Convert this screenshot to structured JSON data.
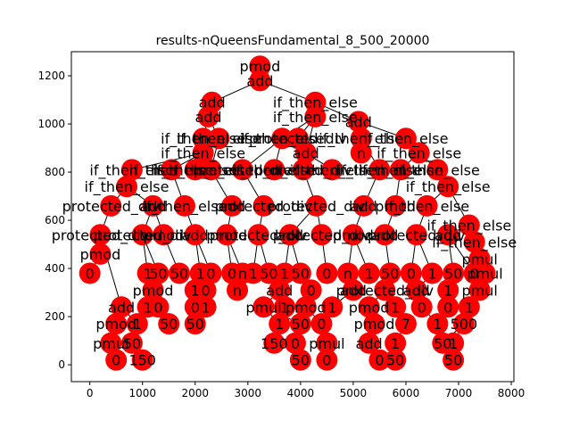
{
  "chart_data": {
    "type": "scatter",
    "subtype": "tree",
    "title": "results-nQueensFundamental_8_500_20000",
    "xlabel": "",
    "ylabel": "",
    "xlim": [
      -350,
      8050
    ],
    "ylim": [
      -70,
      1300
    ],
    "xticks": [
      0,
      1000,
      2000,
      3000,
      4000,
      5000,
      6000,
      7000,
      8000
    ],
    "yticks": [
      0,
      200,
      400,
      600,
      800,
      1000,
      1200
    ],
    "grid": false,
    "node_color": "#ff0000",
    "edge_color": "#000000",
    "nodes": [
      {
        "id": 0,
        "x": 3230,
        "y": 1240,
        "label": "pmod"
      },
      {
        "id": 1,
        "x": 3230,
        "y": 1180,
        "label": "add"
      },
      {
        "id": 2,
        "x": 2320,
        "y": 1090,
        "label": "add"
      },
      {
        "id": 3,
        "x": 2250,
        "y": 1030,
        "label": "add"
      },
      {
        "id": 4,
        "x": 4280,
        "y": 1090,
        "label": "if_then_else"
      },
      {
        "id": 5,
        "x": 4280,
        "y": 1030,
        "label": "if_then_else"
      },
      {
        "id": 6,
        "x": 5100,
        "y": 1010,
        "label": "add"
      },
      {
        "id": 7,
        "x": 2150,
        "y": 940,
        "label": "if_then_else"
      },
      {
        "id": 8,
        "x": 2150,
        "y": 880,
        "label": "if_then_else"
      },
      {
        "id": 9,
        "x": 2450,
        "y": 940,
        "label": "if_then_else"
      },
      {
        "id": 10,
        "x": 3650,
        "y": 940,
        "label": "if_then_else"
      },
      {
        "id": 11,
        "x": 3950,
        "y": 940,
        "label": "protected_div"
      },
      {
        "id": 12,
        "x": 4100,
        "y": 880,
        "label": "add"
      },
      {
        "id": 13,
        "x": 5150,
        "y": 940,
        "label": "if_then_else"
      },
      {
        "id": 14,
        "x": 6000,
        "y": 940,
        "label": "if_then_else"
      },
      {
        "id": 15,
        "x": 6250,
        "y": 880,
        "label": "if_then_else"
      },
      {
        "id": 16,
        "x": 5150,
        "y": 880,
        "label": "n"
      },
      {
        "id": 17,
        "x": 800,
        "y": 810,
        "label": "if_then_else"
      },
      {
        "id": 18,
        "x": 700,
        "y": 740,
        "label": "if_then_else"
      },
      {
        "id": 19,
        "x": 1550,
        "y": 810,
        "label": "if_then_else"
      },
      {
        "id": 20,
        "x": 2000,
        "y": 810,
        "label": "if_then_else"
      },
      {
        "id": 21,
        "x": 2300,
        "y": 810,
        "label": "if_then_else"
      },
      {
        "id": 22,
        "x": 2900,
        "y": 810,
        "label": "protected_div"
      },
      {
        "id": 23,
        "x": 3500,
        "y": 810,
        "label": "if_then_else"
      },
      {
        "id": 24,
        "x": 4050,
        "y": 810,
        "label": "protected_div"
      },
      {
        "id": 25,
        "x": 4600,
        "y": 810,
        "label": "if_then_else"
      },
      {
        "id": 26,
        "x": 5500,
        "y": 810,
        "label": "if_then_else"
      },
      {
        "id": 27,
        "x": 5900,
        "y": 810,
        "label": "if_then_else"
      },
      {
        "id": 28,
        "x": 6600,
        "y": 810,
        "label": "if_then_else"
      },
      {
        "id": 29,
        "x": 6800,
        "y": 740,
        "label": "if_then_else"
      },
      {
        "id": 30,
        "x": 400,
        "y": 660,
        "label": "protected_div"
      },
      {
        "id": 31,
        "x": 1200,
        "y": 660,
        "label": "add"
      },
      {
        "id": 32,
        "x": 1800,
        "y": 660,
        "label": "if_then_else"
      },
      {
        "id": 33,
        "x": 2700,
        "y": 660,
        "label": "add"
      },
      {
        "id": 34,
        "x": 3300,
        "y": 660,
        "label": "protected_div"
      },
      {
        "id": 35,
        "x": 4300,
        "y": 660,
        "label": "protected_div"
      },
      {
        "id": 36,
        "x": 5200,
        "y": 660,
        "label": "add"
      },
      {
        "id": 37,
        "x": 5800,
        "y": 660,
        "label": "pmod"
      },
      {
        "id": 38,
        "x": 6400,
        "y": 660,
        "label": "if_then_else"
      },
      {
        "id": 39,
        "x": 7200,
        "y": 580,
        "label": "if_then_else"
      },
      {
        "id": 40,
        "x": 7300,
        "y": 510,
        "label": "if_then_else"
      },
      {
        "id": 41,
        "x": 200,
        "y": 540,
        "label": "protected_div"
      },
      {
        "id": 42,
        "x": 200,
        "y": 460,
        "label": "pmod"
      },
      {
        "id": 43,
        "x": 0,
        "y": 380,
        "label": "0"
      },
      {
        "id": 44,
        "x": 1000,
        "y": 540,
        "label": "protected_div"
      },
      {
        "id": 45,
        "x": 1400,
        "y": 540,
        "label": "pmod"
      },
      {
        "id": 46,
        "x": 2000,
        "y": 540,
        "label": "add"
      },
      {
        "id": 47,
        "x": 2600,
        "y": 540,
        "label": "pmod"
      },
      {
        "id": 48,
        "x": 3200,
        "y": 540,
        "label": "protected_div"
      },
      {
        "id": 49,
        "x": 3800,
        "y": 540,
        "label": "add"
      },
      {
        "id": 50,
        "x": 4400,
        "y": 540,
        "label": "protected_div"
      },
      {
        "id": 51,
        "x": 5000,
        "y": 540,
        "label": "pmod"
      },
      {
        "id": 52,
        "x": 5600,
        "y": 540,
        "label": "add"
      },
      {
        "id": 53,
        "x": 6200,
        "y": 540,
        "label": "protected_div"
      },
      {
        "id": 54,
        "x": 6800,
        "y": 540,
        "label": "add"
      },
      {
        "id": 55,
        "x": 7400,
        "y": 440,
        "label": "pmul"
      },
      {
        "id": 56,
        "x": 7500,
        "y": 380,
        "label": "pmul"
      },
      {
        "id": 57,
        "x": 1100,
        "y": 380,
        "label": "1"
      },
      {
        "id": 58,
        "x": 1300,
        "y": 380,
        "label": "50"
      },
      {
        "id": 59,
        "x": 1700,
        "y": 380,
        "label": "50"
      },
      {
        "id": 60,
        "x": 2100,
        "y": 380,
        "label": "1"
      },
      {
        "id": 61,
        "x": 2300,
        "y": 380,
        "label": "0"
      },
      {
        "id": 62,
        "x": 2700,
        "y": 380,
        "label": "0"
      },
      {
        "id": 63,
        "x": 2900,
        "y": 380,
        "label": "n"
      },
      {
        "id": 64,
        "x": 3100,
        "y": 380,
        "label": "1"
      },
      {
        "id": 65,
        "x": 3400,
        "y": 380,
        "label": "50"
      },
      {
        "id": 66,
        "x": 3700,
        "y": 380,
        "label": "1"
      },
      {
        "id": 67,
        "x": 4000,
        "y": 380,
        "label": "50"
      },
      {
        "id": 68,
        "x": 4500,
        "y": 380,
        "label": "0"
      },
      {
        "id": 69,
        "x": 4900,
        "y": 380,
        "label": "n"
      },
      {
        "id": 70,
        "x": 5300,
        "y": 380,
        "label": "1"
      },
      {
        "id": 71,
        "x": 5700,
        "y": 380,
        "label": "50"
      },
      {
        "id": 72,
        "x": 6100,
        "y": 380,
        "label": "0"
      },
      {
        "id": 73,
        "x": 6500,
        "y": 380,
        "label": "1"
      },
      {
        "id": 74,
        "x": 6900,
        "y": 380,
        "label": "50"
      },
      {
        "id": 75,
        "x": 7300,
        "y": 380,
        "label": "0"
      },
      {
        "id": 76,
        "x": 1200,
        "y": 310,
        "label": "pmod"
      },
      {
        "id": 77,
        "x": 2000,
        "y": 310,
        "label": "1"
      },
      {
        "id": 78,
        "x": 2200,
        "y": 310,
        "label": "0"
      },
      {
        "id": 79,
        "x": 2800,
        "y": 310,
        "label": "n"
      },
      {
        "id": 80,
        "x": 3600,
        "y": 310,
        "label": "add"
      },
      {
        "id": 81,
        "x": 4200,
        "y": 310,
        "label": "0"
      },
      {
        "id": 82,
        "x": 5000,
        "y": 310,
        "label": "add"
      },
      {
        "id": 83,
        "x": 5600,
        "y": 310,
        "label": "protected_div"
      },
      {
        "id": 84,
        "x": 6200,
        "y": 310,
        "label": "add"
      },
      {
        "id": 85,
        "x": 6800,
        "y": 310,
        "label": "1"
      },
      {
        "id": 86,
        "x": 7400,
        "y": 310,
        "label": "pmul"
      },
      {
        "id": 87,
        "x": 600,
        "y": 240,
        "label": "add"
      },
      {
        "id": 88,
        "x": 1100,
        "y": 240,
        "label": "1"
      },
      {
        "id": 89,
        "x": 1300,
        "y": 240,
        "label": "0"
      },
      {
        "id": 90,
        "x": 2000,
        "y": 240,
        "label": "0"
      },
      {
        "id": 91,
        "x": 2200,
        "y": 240,
        "label": "1"
      },
      {
        "id": 92,
        "x": 3300,
        "y": 240,
        "label": "pmul"
      },
      {
        "id": 93,
        "x": 3700,
        "y": 240,
        "label": "1"
      },
      {
        "id": 94,
        "x": 4100,
        "y": 240,
        "label": "pmod"
      },
      {
        "id": 95,
        "x": 4600,
        "y": 240,
        "label": "1"
      },
      {
        "id": 96,
        "x": 5300,
        "y": 240,
        "label": "pmod"
      },
      {
        "id": 97,
        "x": 5800,
        "y": 240,
        "label": "1"
      },
      {
        "id": 98,
        "x": 6300,
        "y": 240,
        "label": "0"
      },
      {
        "id": 99,
        "x": 6800,
        "y": 240,
        "label": "0"
      },
      {
        "id": 100,
        "x": 7200,
        "y": 240,
        "label": "1"
      },
      {
        "id": 101,
        "x": 500,
        "y": 170,
        "label": "pmod"
      },
      {
        "id": 102,
        "x": 900,
        "y": 170,
        "label": "1"
      },
      {
        "id": 103,
        "x": 1500,
        "y": 170,
        "label": "50"
      },
      {
        "id": 104,
        "x": 2000,
        "y": 170,
        "label": "50"
      },
      {
        "id": 105,
        "x": 3600,
        "y": 170,
        "label": "1"
      },
      {
        "id": 106,
        "x": 4000,
        "y": 170,
        "label": "50"
      },
      {
        "id": 107,
        "x": 4400,
        "y": 170,
        "label": "0"
      },
      {
        "id": 108,
        "x": 5400,
        "y": 170,
        "label": "pmod"
      },
      {
        "id": 109,
        "x": 6000,
        "y": 170,
        "label": "7"
      },
      {
        "id": 110,
        "x": 6600,
        "y": 170,
        "label": "1"
      },
      {
        "id": 111,
        "x": 7100,
        "y": 170,
        "label": "500"
      },
      {
        "id": 112,
        "x": 400,
        "y": 90,
        "label": "pmul"
      },
      {
        "id": 113,
        "x": 800,
        "y": 90,
        "label": "50"
      },
      {
        "id": 114,
        "x": 3500,
        "y": 90,
        "label": "150"
      },
      {
        "id": 115,
        "x": 3900,
        "y": 90,
        "label": "0"
      },
      {
        "id": 116,
        "x": 4500,
        "y": 90,
        "label": "pmul"
      },
      {
        "id": 117,
        "x": 5300,
        "y": 90,
        "label": "add"
      },
      {
        "id": 118,
        "x": 5800,
        "y": 90,
        "label": "1"
      },
      {
        "id": 119,
        "x": 6700,
        "y": 90,
        "label": "50"
      },
      {
        "id": 120,
        "x": 6900,
        "y": 90,
        "label": "1"
      },
      {
        "id": 121,
        "x": 500,
        "y": 20,
        "label": "0"
      },
      {
        "id": 122,
        "x": 1000,
        "y": 20,
        "label": "150"
      },
      {
        "id": 123,
        "x": 4000,
        "y": 20,
        "label": "50"
      },
      {
        "id": 124,
        "x": 4500,
        "y": 20,
        "label": "0"
      },
      {
        "id": 125,
        "x": 5500,
        "y": 20,
        "label": "0"
      },
      {
        "id": 126,
        "x": 5800,
        "y": 20,
        "label": "50"
      },
      {
        "id": 127,
        "x": 6900,
        "y": 20,
        "label": "50"
      }
    ],
    "edges": [
      [
        0,
        1
      ],
      [
        1,
        2
      ],
      [
        1,
        4
      ],
      [
        2,
        3
      ],
      [
        3,
        7
      ],
      [
        3,
        9
      ],
      [
        4,
        5
      ],
      [
        4,
        6
      ],
      [
        5,
        10
      ],
      [
        5,
        11
      ],
      [
        5,
        12
      ],
      [
        6,
        13
      ],
      [
        6,
        14
      ],
      [
        6,
        16
      ],
      [
        14,
        15
      ],
      [
        7,
        8
      ],
      [
        8,
        17
      ],
      [
        8,
        19
      ],
      [
        9,
        20
      ],
      [
        9,
        21
      ],
      [
        10,
        22
      ],
      [
        10,
        23
      ],
      [
        12,
        24
      ],
      [
        12,
        25
      ],
      [
        13,
        26
      ],
      [
        15,
        27
      ],
      [
        15,
        28
      ],
      [
        28,
        29
      ],
      [
        17,
        18
      ],
      [
        18,
        30
      ],
      [
        18,
        31
      ],
      [
        19,
        32
      ],
      [
        21,
        33
      ],
      [
        22,
        34
      ],
      [
        24,
        35
      ],
      [
        26,
        36
      ],
      [
        27,
        37
      ],
      [
        29,
        38
      ],
      [
        29,
        39
      ],
      [
        39,
        40
      ],
      [
        30,
        41
      ],
      [
        41,
        42
      ],
      [
        42,
        43
      ],
      [
        31,
        44
      ],
      [
        31,
        45
      ],
      [
        32,
        46
      ],
      [
        33,
        47
      ],
      [
        34,
        48
      ],
      [
        35,
        49
      ],
      [
        35,
        50
      ],
      [
        36,
        51
      ],
      [
        37,
        52
      ],
      [
        38,
        53
      ],
      [
        39,
        54
      ],
      [
        40,
        55
      ],
      [
        55,
        56
      ],
      [
        44,
        57
      ],
      [
        44,
        58
      ],
      [
        45,
        59
      ],
      [
        46,
        60
      ],
      [
        46,
        61
      ],
      [
        47,
        62
      ],
      [
        47,
        63
      ],
      [
        48,
        64
      ],
      [
        48,
        65
      ],
      [
        49,
        66
      ],
      [
        49,
        67
      ],
      [
        50,
        68
      ],
      [
        51,
        69
      ],
      [
        51,
        70
      ],
      [
        52,
        71
      ],
      [
        53,
        72
      ],
      [
        53,
        73
      ],
      [
        54,
        74
      ],
      [
        54,
        75
      ],
      [
        57,
        76
      ],
      [
        60,
        77
      ],
      [
        61,
        78
      ],
      [
        63,
        79
      ],
      [
        65,
        80
      ],
      [
        67,
        81
      ],
      [
        69,
        82
      ],
      [
        71,
        83
      ],
      [
        73,
        84
      ],
      [
        74,
        85
      ],
      [
        56,
        86
      ],
      [
        41,
        87
      ],
      [
        76,
        88
      ],
      [
        76,
        89
      ],
      [
        77,
        90
      ],
      [
        78,
        91
      ],
      [
        80,
        92
      ],
      [
        80,
        93
      ],
      [
        81,
        94
      ],
      [
        82,
        95
      ],
      [
        83,
        96
      ],
      [
        83,
        97
      ],
      [
        84,
        98
      ],
      [
        85,
        99
      ],
      [
        86,
        100
      ],
      [
        87,
        101
      ],
      [
        87,
        102
      ],
      [
        89,
        103
      ],
      [
        90,
        104
      ],
      [
        92,
        105
      ],
      [
        92,
        106
      ],
      [
        94,
        107
      ],
      [
        96,
        108
      ],
      [
        97,
        109
      ],
      [
        98,
        110
      ],
      [
        100,
        111
      ],
      [
        101,
        112
      ],
      [
        102,
        113
      ],
      [
        105,
        114
      ],
      [
        106,
        115
      ],
      [
        107,
        116
      ],
      [
        108,
        117
      ],
      [
        109,
        118
      ],
      [
        111,
        119
      ],
      [
        111,
        120
      ],
      [
        112,
        121
      ],
      [
        113,
        122
      ],
      [
        115,
        123
      ],
      [
        116,
        124
      ],
      [
        117,
        125
      ],
      [
        118,
        126
      ],
      [
        120,
        127
      ]
    ]
  }
}
